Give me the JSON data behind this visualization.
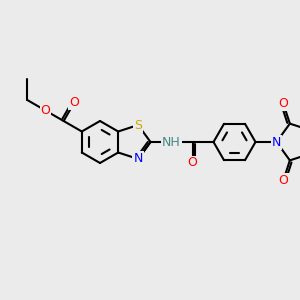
{
  "bg_color": "#ebebeb",
  "bond_color": "#000000",
  "bond_width": 1.5,
  "atom_colors": {
    "S": "#ccaa00",
    "N": "#0000ff",
    "O": "#ff0000",
    "H": "#448888",
    "C": "#000000"
  },
  "font_size_atom": 9
}
